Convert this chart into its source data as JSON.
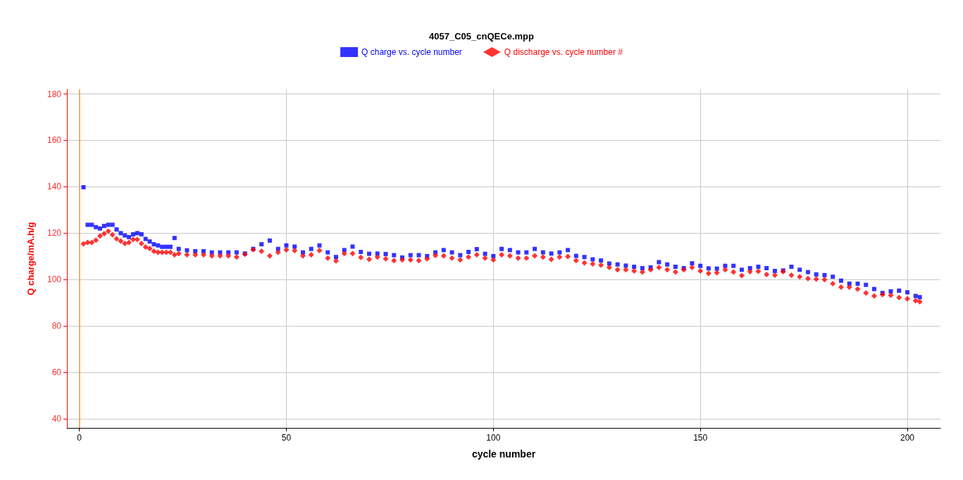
{
  "chart_data": {
    "type": "scatter",
    "title": "4057_C05_cnQECe.mpp",
    "xlabel": "cycle number",
    "ylabel": "Q charge/mA.h/g",
    "x": [
      1,
      2,
      3,
      4,
      5,
      6,
      7,
      8,
      9,
      10,
      11,
      12,
      13,
      14,
      15,
      16,
      17,
      18,
      19,
      20,
      21,
      22,
      23,
      24,
      26,
      28,
      30,
      32,
      34,
      36,
      38,
      40,
      42,
      44,
      46,
      48,
      50,
      52,
      54,
      56,
      58,
      60,
      62,
      64,
      66,
      68,
      70,
      72,
      74,
      76,
      78,
      80,
      82,
      84,
      86,
      88,
      90,
      92,
      94,
      96,
      98,
      100,
      102,
      104,
      106,
      108,
      110,
      112,
      114,
      116,
      118,
      120,
      122,
      124,
      126,
      128,
      130,
      132,
      134,
      136,
      138,
      140,
      142,
      144,
      146,
      148,
      150,
      152,
      154,
      156,
      158,
      160,
      162,
      164,
      166,
      168,
      170,
      172,
      174,
      176,
      178,
      180,
      182,
      184,
      186,
      188,
      190,
      192,
      194,
      196,
      198,
      200,
      202,
      203
    ],
    "series": [
      {
        "name": "Q charge vs. cycle number",
        "color": "#0000ff",
        "marker": "square",
        "values": [
          139.8,
          123.6,
          123.6,
          122.6,
          122,
          123.1,
          123.6,
          123.6,
          121.6,
          120,
          119,
          118.3,
          119.5,
          120,
          119.5,
          117.5,
          116.4,
          115.2,
          114.7,
          114.1,
          114.1,
          114.1,
          117.9,
          113.2,
          112.6,
          112.2,
          112.2,
          111.7,
          111.7,
          111.7,
          111.7,
          111.2,
          113.2,
          115.2,
          116.8,
          113.2,
          114.7,
          114.2,
          111.7,
          113.2,
          114.7,
          111.7,
          109.7,
          112.7,
          114.2,
          111.9,
          111.1,
          111.2,
          111,
          110.5,
          109.5,
          110.5,
          110.5,
          110.1,
          111.7,
          112.7,
          111.7,
          110.5,
          111.9,
          113.1,
          111.1,
          110.1,
          113.2,
          112.7,
          111.7,
          111.7,
          113.2,
          111.7,
          111.2,
          111.7,
          112.7,
          110.2,
          109.7,
          108.7,
          108.2,
          106.9,
          106.5,
          106,
          105.5,
          104.9,
          105.2,
          107.5,
          106.5,
          105.5,
          104.9,
          107,
          105.9,
          104.8,
          104.7,
          105.9,
          105.9,
          104.2,
          104.9,
          105.5,
          104.9,
          103.7,
          103.9,
          105.5,
          104.2,
          103.2,
          102.2,
          101.9,
          101.2,
          99.5,
          98.2,
          98.2,
          97.7,
          95.9,
          94.2,
          94.9,
          95.2,
          94.5,
          92.9,
          92.4
        ]
      },
      {
        "name": "Q discharge vs. cycle number #",
        "color": "#ff0000",
        "marker": "diamond",
        "values": [
          115.4,
          116,
          116,
          117,
          118.8,
          119.8,
          120.8,
          119.3,
          117.6,
          116.6,
          115.5,
          116,
          117.3,
          117.3,
          115.5,
          114,
          113.4,
          112.2,
          111.7,
          111.7,
          111.7,
          111.7,
          110.7,
          111.2,
          110.7,
          110.7,
          110.7,
          110.2,
          110.2,
          110.2,
          109.7,
          110.9,
          112.9,
          112.2,
          110.2,
          111.7,
          112.8,
          112.5,
          110.2,
          110.7,
          112.5,
          109.2,
          108,
          111.2,
          111.2,
          109.5,
          108.7,
          109.7,
          108.9,
          108.2,
          108.5,
          108.5,
          108.2,
          108.9,
          110.4,
          110.2,
          109.2,
          108.5,
          109.7,
          110.7,
          109.2,
          108.5,
          110.7,
          110.2,
          109.2,
          109.2,
          110.2,
          109.7,
          108.7,
          109.7,
          109.9,
          108.2,
          107.2,
          106.7,
          106.2,
          105.2,
          104.2,
          104.2,
          103.7,
          103.2,
          104.2,
          105.2,
          104.2,
          103.2,
          104.2,
          105.2,
          103.7,
          102.6,
          102.9,
          104.2,
          103.2,
          101.7,
          103.4,
          103.5,
          102.2,
          101.9,
          103.4,
          101.9,
          101.2,
          100.4,
          100.2,
          100,
          98.2,
          96.7,
          96.7,
          95.9,
          94.2,
          92.9,
          93.5,
          93.2,
          92.2,
          91.7,
          90.9,
          90.4
        ]
      }
    ],
    "xlim": [
      -3,
      208
    ],
    "xticks": [
      0,
      50,
      100,
      150,
      200
    ],
    "ylim": [
      36,
      182
    ],
    "yticks": [
      40,
      60,
      80,
      100,
      120,
      140,
      160,
      180
    ],
    "ref_lines": [
      {
        "axis": "x",
        "value": 0,
        "color": "#f7a040"
      }
    ],
    "grid": true,
    "legend": "top"
  }
}
